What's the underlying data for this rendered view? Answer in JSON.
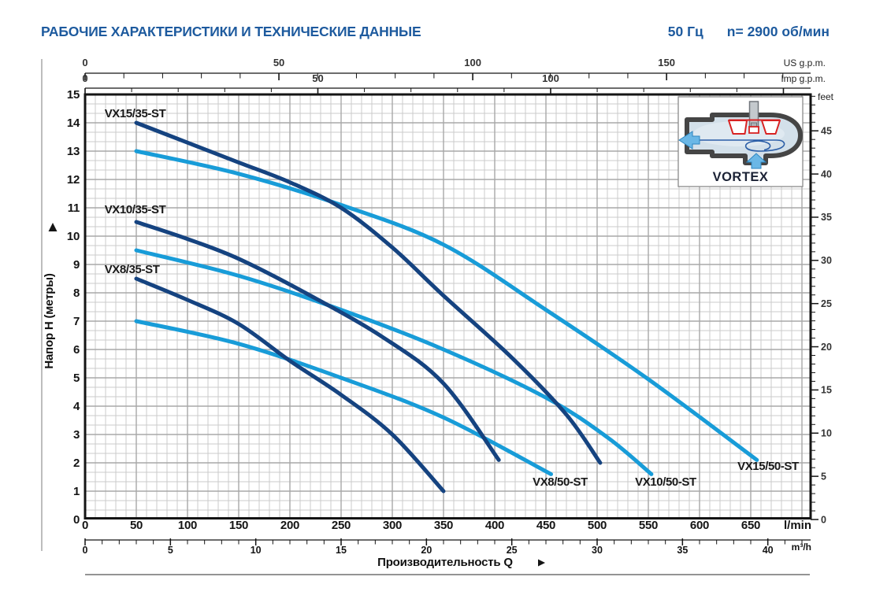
{
  "header": {
    "title": "РАБОЧИЕ ХАРАКТЕРИСТИКИ И ТЕХНИЧЕСКИЕ ДАННЫЕ",
    "frequency": "50 Гц",
    "speed": "n= 2900 об/мин"
  },
  "colors": {
    "header_blue": "#1d5a9e",
    "curve_dark": "#154380",
    "curve_light": "#189cd8",
    "grid_minor": "#cbcbcb",
    "grid_major": "#a8a8a8",
    "axis_dark": "#141414",
    "inset_casing": "#d3e0ea",
    "inset_outline": "#454545",
    "inset_red": "#d82222",
    "inset_arrow": "#6ab7e6",
    "inset_swirl": "#2b5ea7"
  },
  "chart_data": {
    "type": "line",
    "xlabel": "Производительность Q",
    "ylabel": "Напор H (метры)",
    "axes": {
      "lmin": {
        "unit": "l/min",
        "min": 0,
        "max": 708,
        "tick_step": 10,
        "label_step": 50,
        "labels": [
          0,
          50,
          100,
          150,
          200,
          250,
          300,
          350,
          400,
          450,
          500,
          550,
          600,
          650
        ]
      },
      "m3h": {
        "unit": "m³/h",
        "min": 0,
        "max": 42,
        "tick_step": 1,
        "label_step": 5,
        "labels": [
          0,
          5,
          10,
          15,
          20,
          25,
          30,
          35,
          40
        ]
      },
      "us_gpm": {
        "unit": "US g.p.m.",
        "min": 0,
        "max": 180,
        "tick_step": 10,
        "labels": [
          0,
          50,
          100,
          150
        ]
      },
      "imp_gpm": {
        "unit": "Imp g.p.m.",
        "min": 0,
        "max": 150,
        "tick_step": 10,
        "labels": [
          0,
          50,
          100
        ]
      },
      "meters": {
        "unit": "",
        "min": 0,
        "max": 15,
        "tick_step": 1,
        "labels": [
          0,
          1,
          2,
          3,
          4,
          5,
          6,
          7,
          8,
          9,
          10,
          11,
          12,
          13,
          14,
          15
        ]
      },
      "feet": {
        "unit": "feet",
        "min": 0,
        "max": 49,
        "tick_step": 1,
        "label_step": 5,
        "labels": [
          0,
          5,
          10,
          15,
          20,
          25,
          30,
          35,
          40,
          45
        ]
      }
    },
    "grid": {
      "minor_x_lmin": 10,
      "major_x_lmin": 50,
      "minor_y_m": 0.3333,
      "major_y_m": 1
    },
    "series": [
      {
        "name": "VX8/50-ST",
        "family": "50",
        "color": "light",
        "points": [
          [
            50,
            7.0
          ],
          [
            150,
            6.2
          ],
          [
            250,
            5.0
          ],
          [
            350,
            3.6
          ],
          [
            455,
            1.6
          ]
        ],
        "label_at": [
          437,
          1.2
        ]
      },
      {
        "name": "VX10/50-ST",
        "family": "50",
        "color": "light",
        "points": [
          [
            50,
            9.5
          ],
          [
            150,
            8.6
          ],
          [
            250,
            7.4
          ],
          [
            350,
            6.0
          ],
          [
            450,
            4.3
          ],
          [
            510,
            2.9
          ],
          [
            553,
            1.6
          ]
        ],
        "label_at": [
          537,
          1.2
        ]
      },
      {
        "name": "VX15/50-ST",
        "family": "50",
        "color": "light",
        "points": [
          [
            50,
            13.0
          ],
          [
            150,
            12.2
          ],
          [
            250,
            11.1
          ],
          [
            350,
            9.7
          ],
          [
            450,
            7.4
          ],
          [
            550,
            4.95
          ],
          [
            656,
            2.1
          ]
        ],
        "label_at": [
          637,
          1.75
        ]
      },
      {
        "name": "VX8/35-ST",
        "family": "35",
        "color": "dark",
        "points": [
          [
            50,
            8.5
          ],
          [
            100,
            7.75
          ],
          [
            150,
            6.9
          ],
          [
            200,
            5.6
          ],
          [
            250,
            4.4
          ],
          [
            300,
            3.0
          ],
          [
            350,
            1.0
          ]
        ],
        "label_at": [
          19,
          8.7
        ]
      },
      {
        "name": "VX10/35-ST",
        "family": "35",
        "color": "dark",
        "points": [
          [
            50,
            10.5
          ],
          [
            100,
            9.9
          ],
          [
            150,
            9.2
          ],
          [
            215,
            8.0
          ],
          [
            290,
            6.45
          ],
          [
            350,
            4.8
          ],
          [
            404,
            2.1
          ]
        ],
        "label_at": [
          19,
          10.8
        ]
      },
      {
        "name": "VX15/35-ST",
        "family": "35",
        "color": "dark",
        "points": [
          [
            50,
            14.0
          ],
          [
            100,
            13.3
          ],
          [
            150,
            12.6
          ],
          [
            200,
            11.9
          ],
          [
            250,
            11.0
          ],
          [
            300,
            9.6
          ],
          [
            350,
            7.9
          ],
          [
            417,
            5.7
          ],
          [
            470,
            3.7
          ],
          [
            503,
            2.0
          ]
        ],
        "label_at": [
          19,
          14.2
        ]
      }
    ]
  },
  "inset": {
    "caption": "VORTEX"
  }
}
